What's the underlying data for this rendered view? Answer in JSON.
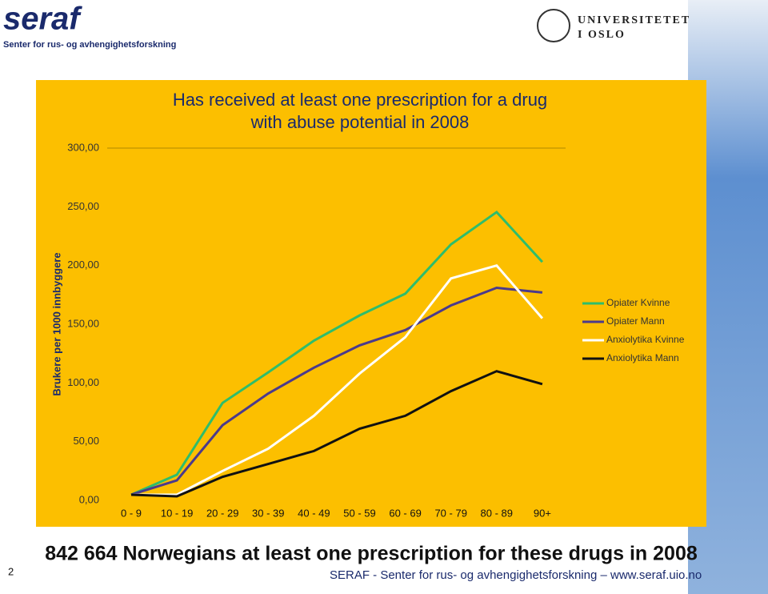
{
  "slide": {
    "logo": "seraf",
    "logo_subtitle": "Senter for rus- og avhengighetsforskning",
    "university_line1": "UNIVERSITETET",
    "university_line2": "I OSLO",
    "headline": "842 664 Norwegians at least one prescription for these drugs in 2008",
    "page_number": "2",
    "footer": "SERAF - Senter for rus- og avhengighetsforskning – www.seraf.uio.no"
  },
  "chart_data": {
    "type": "line",
    "title": "Has received at least one prescription for a drug with abuse potential in 2008",
    "y_label": "Brukere per 1000 innbyggere",
    "categories": [
      "0 - 9",
      "10 - 19",
      "20 - 29",
      "30 - 39",
      "40 - 49",
      "50 - 59",
      "60 - 69",
      "70 - 79",
      "80 - 89",
      "90+"
    ],
    "series": [
      {
        "name": "Opiater Kvinne",
        "color": "#2ebd6b",
        "values": [
          4.8,
          21.8,
          83,
          109,
          136,
          157.5,
          176,
          218,
          245.5,
          203
        ]
      },
      {
        "name": "Opiater Mann",
        "color": "#4b3a8c",
        "values": [
          4.8,
          17,
          64,
          91,
          113,
          132,
          145,
          166,
          181,
          177
        ]
      },
      {
        "name": "Anxiolytika Kvinne",
        "color": "#ffffff",
        "values": [
          4.8,
          4.8,
          25,
          44,
          72,
          108,
          139,
          189,
          200,
          155
        ]
      },
      {
        "name": "Anxiolytika Mann",
        "color": "#111111",
        "values": [
          4.8,
          3.4,
          20,
          31,
          42,
          61,
          72,
          93,
          110,
          99
        ]
      }
    ],
    "ylim": [
      0,
      300
    ],
    "yticks": [
      {
        "value": 0,
        "label": "0,00"
      },
      {
        "value": 50,
        "label": "50,00"
      },
      {
        "value": 100,
        "label": "100,00"
      },
      {
        "value": 150,
        "label": "150,00"
      },
      {
        "value": 200,
        "label": "200,00"
      },
      {
        "value": 250,
        "label": "250,00"
      },
      {
        "value": 300,
        "label": "300,00"
      }
    ],
    "grid": false,
    "legend": "right",
    "background": "#fcbf00"
  }
}
